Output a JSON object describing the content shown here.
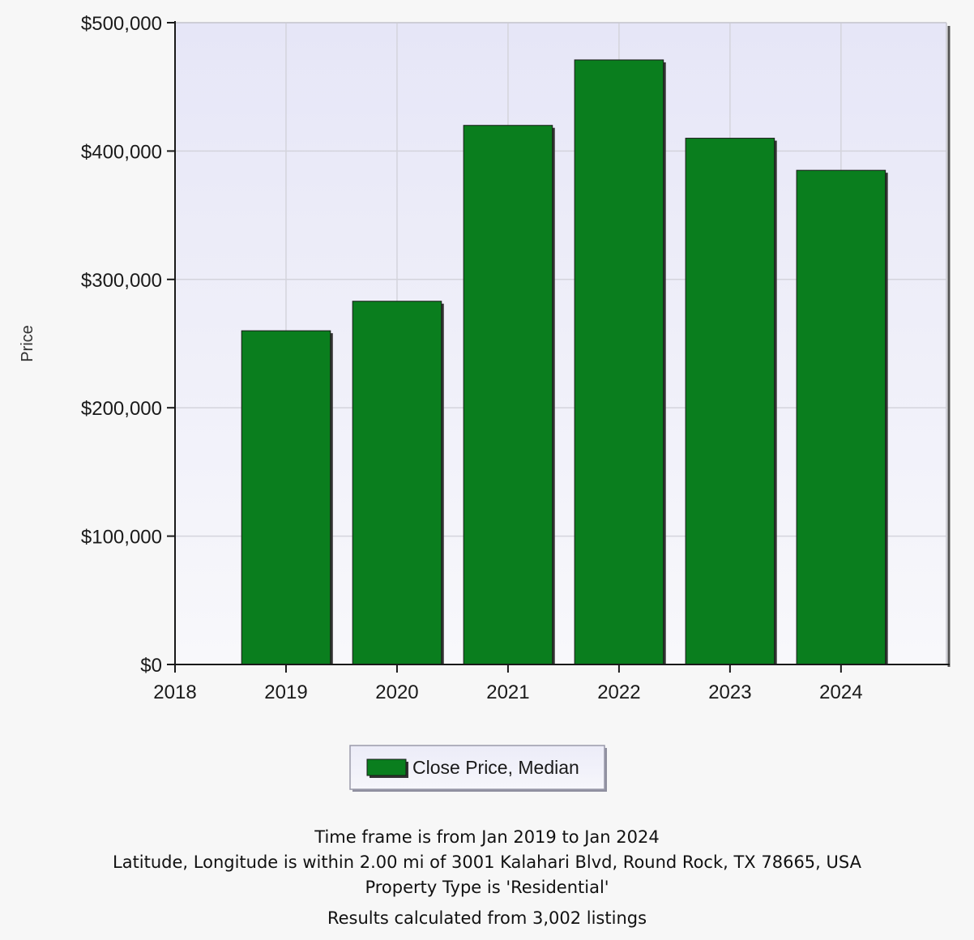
{
  "chart_data": {
    "type": "bar",
    "title": "",
    "xlabel": "",
    "ylabel": "Price",
    "x_ticks": [
      "2018",
      "2019",
      "2020",
      "2021",
      "2022",
      "2023",
      "2024"
    ],
    "categories": [
      "2019",
      "2020",
      "2021",
      "2022",
      "2023",
      "2024"
    ],
    "series": [
      {
        "name": "Close Price, Median",
        "color": "#0a7e1e",
        "values": [
          260000,
          283000,
          420000,
          471000,
          410000,
          385000
        ]
      }
    ],
    "ylim": [
      0,
      500000
    ],
    "y_ticks": [
      0,
      100000,
      200000,
      300000,
      400000,
      500000
    ],
    "y_tick_labels": [
      "$0",
      "$100,000",
      "$200,000",
      "$300,000",
      "$400,000",
      "$500,000"
    ],
    "xlim": [
      2018,
      2024.95
    ],
    "grid": true,
    "legend_position": "bottom-center",
    "plot_background": "#e8e8f8"
  },
  "footer": {
    "timeframe": "Time frame is from Jan 2019 to Jan 2024",
    "location": "Latitude, Longitude is within 2.00 mi of 3001 Kalahari Blvd, Round Rock, TX 78665, USA",
    "property_type": "Property Type is 'Residential'",
    "results": "Results calculated from 3,002 listings"
  }
}
